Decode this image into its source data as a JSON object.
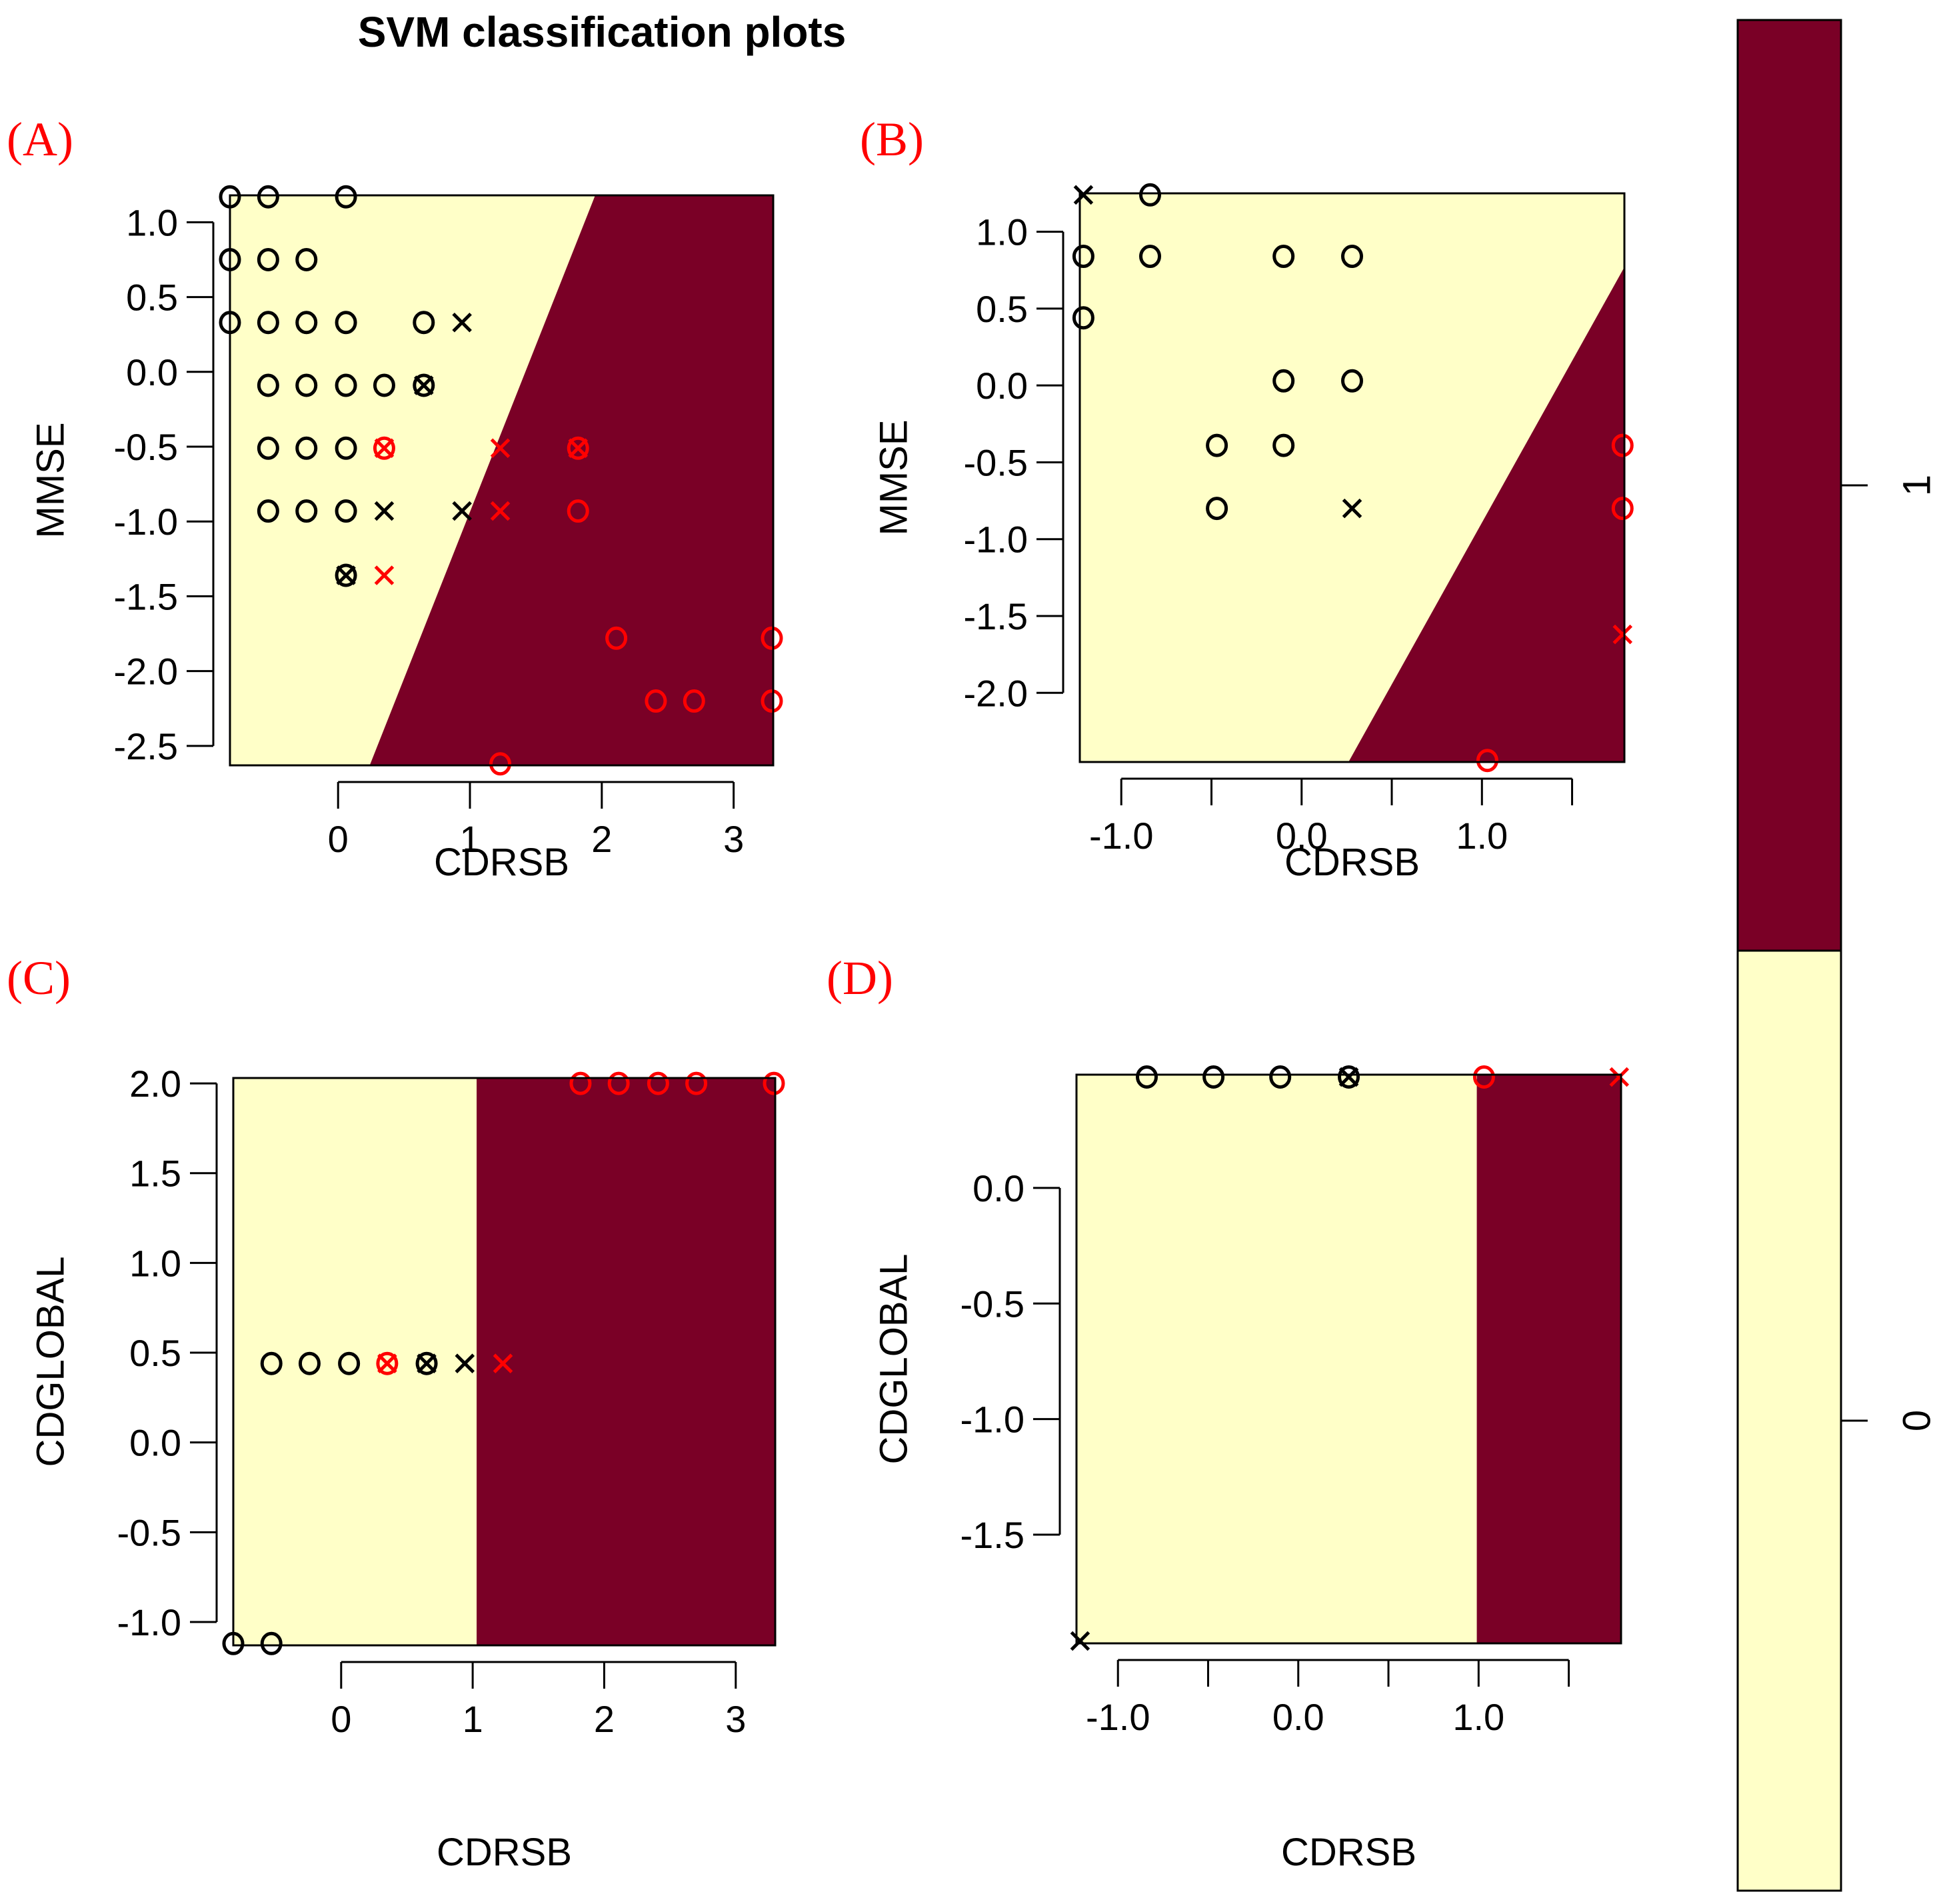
{
  "title": "SVM classification plots",
  "colors": {
    "class0_region": "#FFFFC8",
    "class1_region": "#7A0026",
    "class0_point": "#000000",
    "class1_point": "#FF0000",
    "panel_label": "#FF0000",
    "frame": "#000000"
  },
  "legend": {
    "levels": [
      "1",
      "0"
    ],
    "orientation": "vertical",
    "placement": "right"
  },
  "chart_data": [
    {
      "type": "scatter",
      "label": "(A)",
      "xlabel": "CDRSB",
      "ylabel": "MMSE",
      "xlim": [
        -0.82,
        3.3
      ],
      "ylim": [
        -2.63,
        1.18
      ],
      "xticks": [
        0,
        1,
        2,
        3
      ],
      "xtick_labels": [
        "0",
        "1",
        "2",
        "3"
      ],
      "yticks": [
        1.0,
        0.5,
        0.0,
        -0.5,
        -1.0,
        -1.5,
        -2.0,
        -2.5
      ],
      "ytick_labels": [
        "1.0",
        "0.5",
        "0.0",
        "-0.5",
        "-1.0",
        "-1.5",
        "-2.0",
        "-2.5"
      ],
      "boundary": {
        "type": "line",
        "x_at_ymin": 0.24,
        "x_at_ymax": 1.95,
        "right_class": "1"
      },
      "points": [
        {
          "x": -0.82,
          "y": 1.17,
          "symbol": "o",
          "class": "0"
        },
        {
          "x": -0.53,
          "y": 1.17,
          "symbol": "o",
          "class": "0"
        },
        {
          "x": 0.06,
          "y": 1.17,
          "symbol": "o",
          "class": "0"
        },
        {
          "x": -0.82,
          "y": 0.75,
          "symbol": "o",
          "class": "0"
        },
        {
          "x": -0.53,
          "y": 0.75,
          "symbol": "o",
          "class": "0"
        },
        {
          "x": -0.24,
          "y": 0.75,
          "symbol": "o",
          "class": "0"
        },
        {
          "x": -0.82,
          "y": 0.33,
          "symbol": "o",
          "class": "0"
        },
        {
          "x": -0.53,
          "y": 0.33,
          "symbol": "o",
          "class": "0"
        },
        {
          "x": -0.24,
          "y": 0.33,
          "symbol": "o",
          "class": "0"
        },
        {
          "x": 0.06,
          "y": 0.33,
          "symbol": "o",
          "class": "0"
        },
        {
          "x": 0.65,
          "y": 0.33,
          "symbol": "o",
          "class": "0"
        },
        {
          "x": 0.94,
          "y": 0.33,
          "symbol": "x",
          "class": "0"
        },
        {
          "x": -0.53,
          "y": -0.09,
          "symbol": "o",
          "class": "0"
        },
        {
          "x": -0.24,
          "y": -0.09,
          "symbol": "o",
          "class": "0"
        },
        {
          "x": 0.06,
          "y": -0.09,
          "symbol": "o",
          "class": "0"
        },
        {
          "x": 0.35,
          "y": -0.09,
          "symbol": "o",
          "class": "0"
        },
        {
          "x": 0.65,
          "y": -0.09,
          "symbol": "o",
          "class": "0"
        },
        {
          "x": 0.65,
          "y": -0.09,
          "symbol": "x",
          "class": "0"
        },
        {
          "x": -0.53,
          "y": -0.51,
          "symbol": "o",
          "class": "0"
        },
        {
          "x": -0.24,
          "y": -0.51,
          "symbol": "o",
          "class": "0"
        },
        {
          "x": 0.06,
          "y": -0.51,
          "symbol": "o",
          "class": "0"
        },
        {
          "x": 0.35,
          "y": -0.51,
          "symbol": "o",
          "class": "1"
        },
        {
          "x": 0.35,
          "y": -0.51,
          "symbol": "x",
          "class": "1"
        },
        {
          "x": 1.23,
          "y": -0.51,
          "symbol": "x",
          "class": "1"
        },
        {
          "x": 1.82,
          "y": -0.51,
          "symbol": "o",
          "class": "1"
        },
        {
          "x": 1.82,
          "y": -0.51,
          "symbol": "x",
          "class": "1"
        },
        {
          "x": -0.53,
          "y": -0.93,
          "symbol": "o",
          "class": "0"
        },
        {
          "x": -0.24,
          "y": -0.93,
          "symbol": "o",
          "class": "0"
        },
        {
          "x": 0.06,
          "y": -0.93,
          "symbol": "o",
          "class": "0"
        },
        {
          "x": 0.35,
          "y": -0.93,
          "symbol": "x",
          "class": "0"
        },
        {
          "x": 0.94,
          "y": -0.93,
          "symbol": "x",
          "class": "0"
        },
        {
          "x": 1.23,
          "y": -0.93,
          "symbol": "x",
          "class": "1"
        },
        {
          "x": 1.82,
          "y": -0.93,
          "symbol": "o",
          "class": "1"
        },
        {
          "x": 0.06,
          "y": -1.36,
          "symbol": "o",
          "class": "0"
        },
        {
          "x": 0.06,
          "y": -1.36,
          "symbol": "x",
          "class": "0"
        },
        {
          "x": 0.35,
          "y": -1.36,
          "symbol": "x",
          "class": "1"
        },
        {
          "x": 2.11,
          "y": -1.78,
          "symbol": "o",
          "class": "1"
        },
        {
          "x": 3.29,
          "y": -1.78,
          "symbol": "o",
          "class": "1"
        },
        {
          "x": 2.41,
          "y": -2.2,
          "symbol": "o",
          "class": "1"
        },
        {
          "x": 2.7,
          "y": -2.2,
          "symbol": "o",
          "class": "1"
        },
        {
          "x": 3.29,
          "y": -2.2,
          "symbol": "o",
          "class": "1"
        },
        {
          "x": 1.23,
          "y": -2.62,
          "symbol": "o",
          "class": "1"
        }
      ]
    },
    {
      "type": "scatter",
      "label": "(B)",
      "xlabel": "CDRSB",
      "ylabel": "MMSE",
      "xlim": [
        -1.23,
        1.79
      ],
      "ylim": [
        -2.45,
        1.25
      ],
      "xticks": [
        -1.0,
        -0.5,
        0.0,
        0.5,
        1.0,
        1.5
      ],
      "xtick_labels": [
        "-1.0",
        "",
        "0.0",
        "",
        "1.0",
        ""
      ],
      "yticks": [
        1.0,
        0.5,
        0.0,
        -0.5,
        -1.0,
        -1.5,
        -2.0
      ],
      "ytick_labels": [
        "1.0",
        "0.5",
        "0.0",
        "-0.5",
        "-1.0",
        "-1.5",
        "-2.0"
      ],
      "boundary": {
        "type": "line",
        "x_at_ymin": 0.26,
        "x_at_ymax": 1.79,
        "y_at_xmax": 0.77,
        "right_class": "1"
      },
      "points": [
        {
          "x": -1.21,
          "y": 1.24,
          "symbol": "x",
          "class": "0"
        },
        {
          "x": -0.84,
          "y": 1.24,
          "symbol": "o",
          "class": "0"
        },
        {
          "x": -1.21,
          "y": 0.84,
          "symbol": "o",
          "class": "0"
        },
        {
          "x": -0.84,
          "y": 0.84,
          "symbol": "o",
          "class": "0"
        },
        {
          "x": -0.1,
          "y": 0.84,
          "symbol": "o",
          "class": "0"
        },
        {
          "x": 0.28,
          "y": 0.84,
          "symbol": "o",
          "class": "0"
        },
        {
          "x": -1.21,
          "y": 0.44,
          "symbol": "o",
          "class": "0"
        },
        {
          "x": -0.1,
          "y": 0.03,
          "symbol": "o",
          "class": "0"
        },
        {
          "x": 0.28,
          "y": 0.03,
          "symbol": "o",
          "class": "0"
        },
        {
          "x": -0.47,
          "y": -0.39,
          "symbol": "o",
          "class": "0"
        },
        {
          "x": -0.1,
          "y": -0.39,
          "symbol": "o",
          "class": "0"
        },
        {
          "x": -0.47,
          "y": -0.8,
          "symbol": "o",
          "class": "0"
        },
        {
          "x": 0.28,
          "y": -0.8,
          "symbol": "x",
          "class": "0"
        },
        {
          "x": 1.78,
          "y": -0.39,
          "symbol": "o",
          "class": "1"
        },
        {
          "x": 1.78,
          "y": -0.8,
          "symbol": "o",
          "class": "1"
        },
        {
          "x": 1.78,
          "y": -1.62,
          "symbol": "x",
          "class": "1"
        },
        {
          "x": 1.03,
          "y": -2.44,
          "symbol": "o",
          "class": "1"
        }
      ]
    },
    {
      "type": "scatter",
      "label": "(C)",
      "xlabel": "CDRSB",
      "ylabel": "CDGLOBAL",
      "xlim": [
        -0.82,
        3.3
      ],
      "ylim": [
        -1.13,
        2.03
      ],
      "xticks": [
        0,
        1,
        2,
        3
      ],
      "xtick_labels": [
        "0",
        "1",
        "2",
        "3"
      ],
      "yticks": [
        2.0,
        1.5,
        1.0,
        0.5,
        0.0,
        -0.5,
        -1.0
      ],
      "ytick_labels": [
        "2.0",
        "1.5",
        "1.0",
        "0.5",
        "0.0",
        "-0.5",
        "-1.0"
      ],
      "boundary": {
        "type": "vertical",
        "x": 1.03,
        "right_class": "1"
      },
      "points": [
        {
          "x": -0.53,
          "y": 0.44,
          "symbol": "o",
          "class": "0"
        },
        {
          "x": -0.24,
          "y": 0.44,
          "symbol": "o",
          "class": "0"
        },
        {
          "x": 0.06,
          "y": 0.44,
          "symbol": "o",
          "class": "0"
        },
        {
          "x": 0.35,
          "y": 0.44,
          "symbol": "o",
          "class": "1"
        },
        {
          "x": 0.35,
          "y": 0.44,
          "symbol": "x",
          "class": "1"
        },
        {
          "x": 0.65,
          "y": 0.44,
          "symbol": "o",
          "class": "0"
        },
        {
          "x": 0.65,
          "y": 0.44,
          "symbol": "x",
          "class": "0"
        },
        {
          "x": 0.94,
          "y": 0.44,
          "symbol": "x",
          "class": "0"
        },
        {
          "x": 1.23,
          "y": 0.44,
          "symbol": "x",
          "class": "1"
        },
        {
          "x": 1.82,
          "y": 2.0,
          "symbol": "o",
          "class": "1"
        },
        {
          "x": 2.11,
          "y": 2.0,
          "symbol": "o",
          "class": "1"
        },
        {
          "x": 2.41,
          "y": 2.0,
          "symbol": "o",
          "class": "1"
        },
        {
          "x": 2.7,
          "y": 2.0,
          "symbol": "o",
          "class": "1"
        },
        {
          "x": 3.29,
          "y": 2.0,
          "symbol": "o",
          "class": "1"
        },
        {
          "x": -0.82,
          "y": -1.12,
          "symbol": "o",
          "class": "0"
        },
        {
          "x": -0.53,
          "y": -1.12,
          "symbol": "o",
          "class": "0"
        }
      ]
    },
    {
      "type": "scatter",
      "label": "(D)",
      "xlabel": "CDRSB",
      "ylabel": "CDGLOBAL",
      "xlim": [
        -1.23,
        1.79
      ],
      "ylim": [
        -1.97,
        0.49
      ],
      "xticks": [
        -1.0,
        -0.5,
        0.0,
        0.5,
        1.0,
        1.5
      ],
      "xtick_labels": [
        "-1.0",
        "",
        "0.0",
        "",
        "1.0",
        ""
      ],
      "yticks": [
        0.0,
        -0.5,
        -1.0,
        -1.5
      ],
      "ytick_labels": [
        "0.0",
        "-0.5",
        "-1.0",
        "-1.5"
      ],
      "boundary": {
        "type": "vertical",
        "x": 0.99,
        "right_class": "1"
      },
      "points": [
        {
          "x": -0.84,
          "y": 0.48,
          "symbol": "o",
          "class": "0"
        },
        {
          "x": -0.47,
          "y": 0.48,
          "symbol": "o",
          "class": "0"
        },
        {
          "x": -0.1,
          "y": 0.48,
          "symbol": "o",
          "class": "0"
        },
        {
          "x": 0.28,
          "y": 0.48,
          "symbol": "o",
          "class": "0"
        },
        {
          "x": 0.28,
          "y": 0.48,
          "symbol": "x",
          "class": "0"
        },
        {
          "x": 1.03,
          "y": 0.48,
          "symbol": "o",
          "class": "1"
        },
        {
          "x": 1.78,
          "y": 0.48,
          "symbol": "x",
          "class": "1"
        },
        {
          "x": -1.21,
          "y": -1.96,
          "symbol": "x",
          "class": "0"
        }
      ]
    }
  ]
}
